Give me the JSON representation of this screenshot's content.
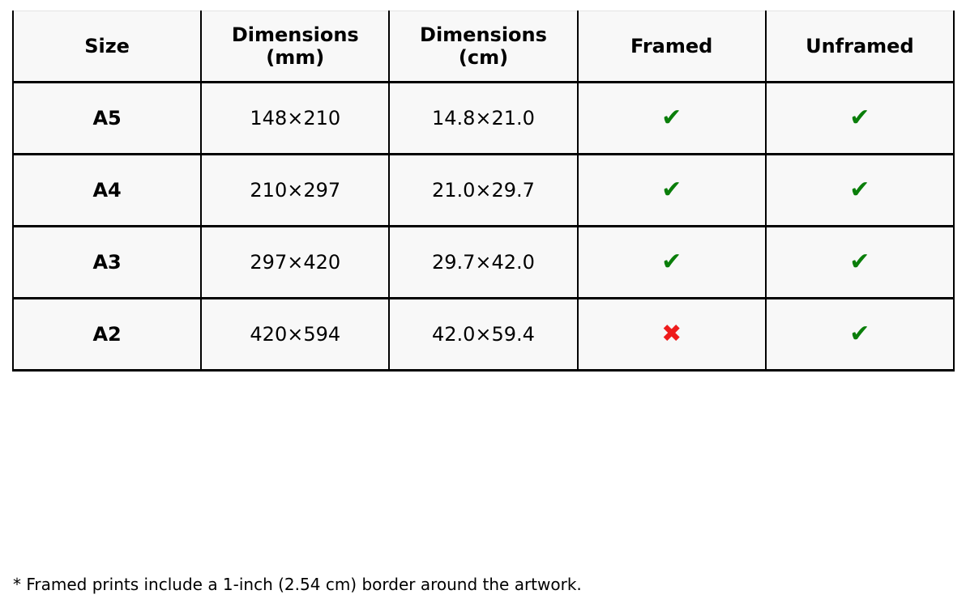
{
  "table": {
    "headers": [
      "Size",
      "Dimensions (mm)",
      "Dimensions (cm)",
      "Framed",
      "Unframed"
    ],
    "rows": [
      {
        "size": "A5",
        "dimensions_mm": "148×210",
        "dimensions_cm": "14.8×21.0",
        "framed": "✔",
        "unframed": "✔"
      },
      {
        "size": "A4",
        "dimensions_mm": "210×297",
        "dimensions_cm": "21.0×29.7",
        "framed": "✔",
        "unframed": "✔"
      },
      {
        "size": "A3",
        "dimensions_mm": "297×420",
        "dimensions_cm": "29.7×42.0",
        "framed": "✔",
        "unframed": "✔"
      },
      {
        "size": "A2",
        "dimensions_mm": "420×594",
        "dimensions_cm": "42.0×59.4",
        "framed": "✖",
        "unframed": "✔"
      }
    ],
    "colors": {
      "check": "#0a7e0a",
      "cross": "#ee1c1c",
      "cell_background": "#f8f8f8",
      "border": "#000000",
      "table_top_border": "#e3e3e3"
    }
  },
  "footnote": "* Framed prints include a 1-inch (2.54 cm) border around the artwork."
}
